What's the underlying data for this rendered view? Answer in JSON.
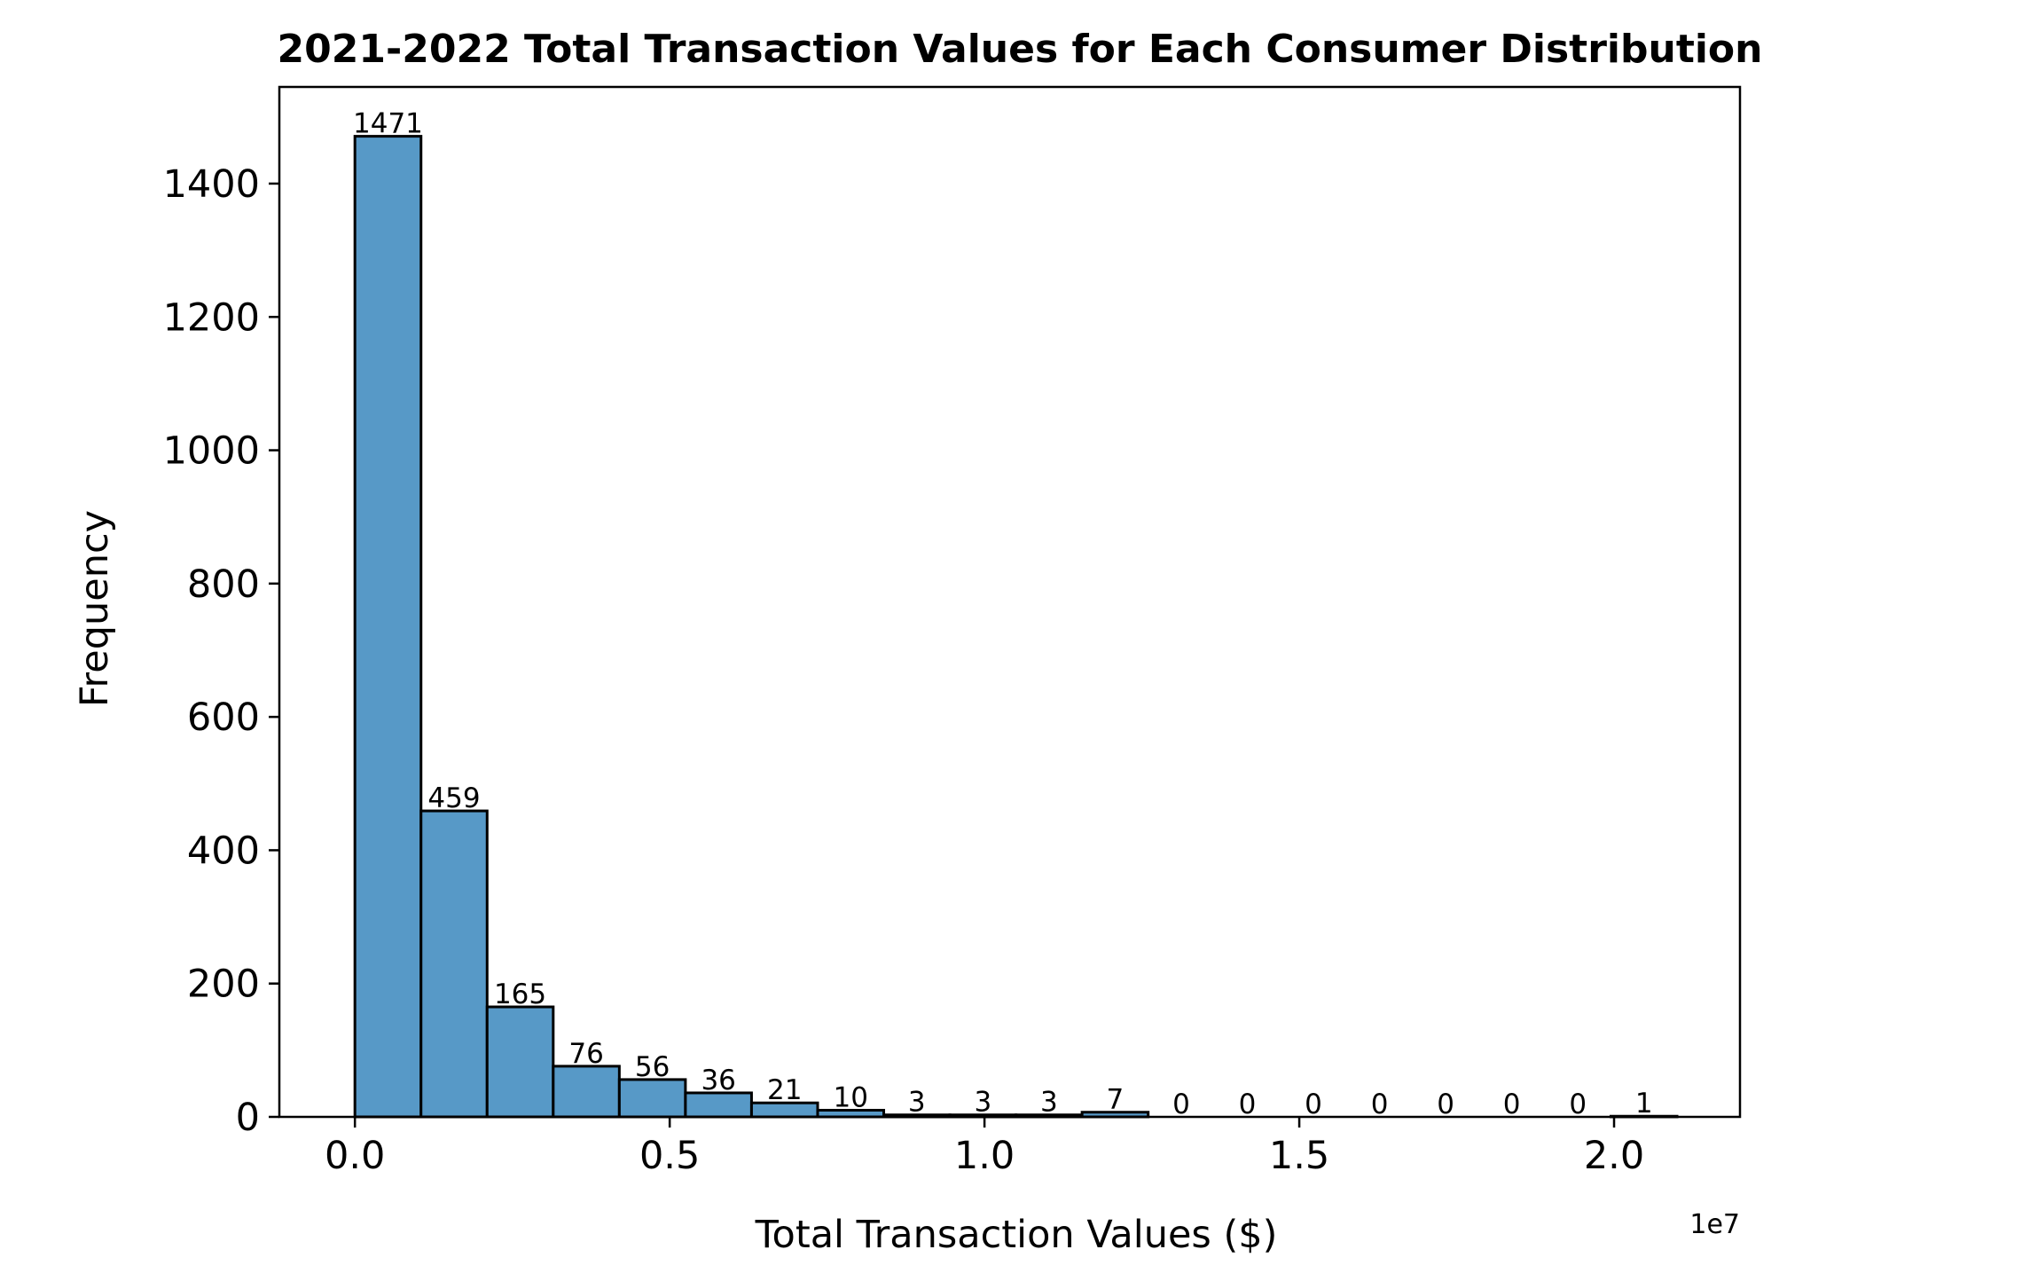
{
  "chart_data": {
    "type": "bar",
    "title": "2021-2022 Total Transaction Values for Each Consumer Distribution",
    "xlabel": "Total Transaction Values ($)",
    "ylabel": "Frequency",
    "x_offset_label": "1e7",
    "bar_color": "#5799c7",
    "bin_edges": [
      0.0,
      0.105,
      0.21,
      0.315,
      0.42,
      0.525,
      0.63,
      0.735,
      0.84,
      0.945,
      1.05,
      1.155,
      1.26,
      1.365,
      1.47,
      1.575,
      1.68,
      1.785,
      1.89,
      1.995,
      2.1
    ],
    "values": [
      1471,
      459,
      165,
      76,
      56,
      36,
      21,
      10,
      3,
      3,
      3,
      7,
      0,
      0,
      0,
      0,
      0,
      0,
      0,
      1
    ],
    "value_labels": [
      "1471",
      "459",
      "165",
      "76",
      "56",
      "36",
      "21",
      "10",
      "3",
      "3",
      "3",
      "7",
      "0",
      "0",
      "0",
      "0",
      "0",
      "0",
      "0",
      "1"
    ],
    "xlim": [
      -0.12,
      2.2
    ],
    "ylim": [
      0,
      1545
    ],
    "xticks": [
      0.0,
      0.5,
      1.0,
      1.5,
      2.0
    ],
    "xtick_labels": [
      "0.0",
      "0.5",
      "1.0",
      "1.5",
      "2.0"
    ],
    "yticks": [
      0,
      200,
      400,
      600,
      800,
      1000,
      1200,
      1400
    ],
    "ytick_labels": [
      "0",
      "200",
      "400",
      "600",
      "800",
      "1000",
      "1200",
      "1400"
    ],
    "grid": false,
    "legend": "none"
  }
}
